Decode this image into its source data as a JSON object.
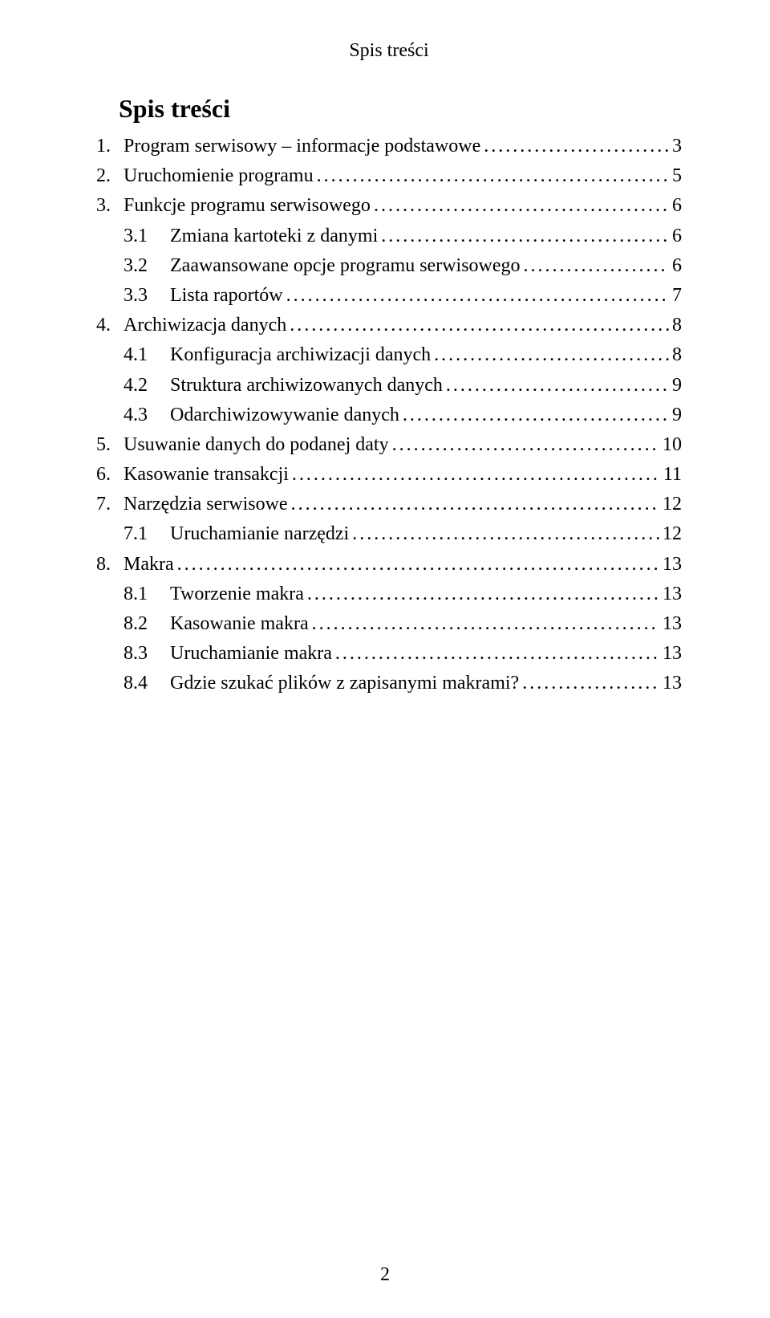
{
  "running_head": "Spis treści",
  "title": "Spis treści",
  "page_number": "2",
  "toc": [
    {
      "level": 1,
      "num": "1.",
      "label": "Program serwisowy – informacje podstawowe",
      "page": "3"
    },
    {
      "level": 1,
      "num": "2.",
      "label": "Uruchomienie programu",
      "page": "5"
    },
    {
      "level": 1,
      "num": "3.",
      "label": "Funkcje programu serwisowego",
      "page": "6"
    },
    {
      "level": 2,
      "num": "3.1",
      "label": "Zmiana kartoteki z danymi",
      "page": "6"
    },
    {
      "level": 2,
      "num": "3.2",
      "label": "Zaawansowane opcje programu serwisowego",
      "page": "6"
    },
    {
      "level": 2,
      "num": "3.3",
      "label": "Lista raportów",
      "page": "7"
    },
    {
      "level": 1,
      "num": "4.",
      "label": "Archiwizacja danych",
      "page": "8"
    },
    {
      "level": 2,
      "num": "4.1",
      "label": "Konfiguracja archiwizacji danych",
      "page": "8"
    },
    {
      "level": 2,
      "num": "4.2",
      "label": "Struktura archiwizowanych danych",
      "page": "9"
    },
    {
      "level": 2,
      "num": "4.3",
      "label": "Odarchiwizowywanie danych",
      "page": "9"
    },
    {
      "level": 1,
      "num": "5.",
      "label": "Usuwanie danych do podanej daty",
      "page": "10"
    },
    {
      "level": 1,
      "num": "6.",
      "label": "Kasowanie transakcji",
      "page": "11"
    },
    {
      "level": 1,
      "num": "7.",
      "label": "Narzędzia serwisowe",
      "page": "12"
    },
    {
      "level": 2,
      "num": "7.1",
      "label": "Uruchamianie narzędzi",
      "page": "12"
    },
    {
      "level": 1,
      "num": "8.",
      "label": "Makra",
      "page": "13"
    },
    {
      "level": 2,
      "num": "8.1",
      "label": "Tworzenie makra",
      "page": "13"
    },
    {
      "level": 2,
      "num": "8.2",
      "label": "Kasowanie makra",
      "page": "13"
    },
    {
      "level": 2,
      "num": "8.3",
      "label": "Uruchamianie makra",
      "page": "13"
    },
    {
      "level": 2,
      "num": "8.4",
      "label": "Gdzie szukać plików z zapisanymi makrami?",
      "page": "13"
    }
  ]
}
